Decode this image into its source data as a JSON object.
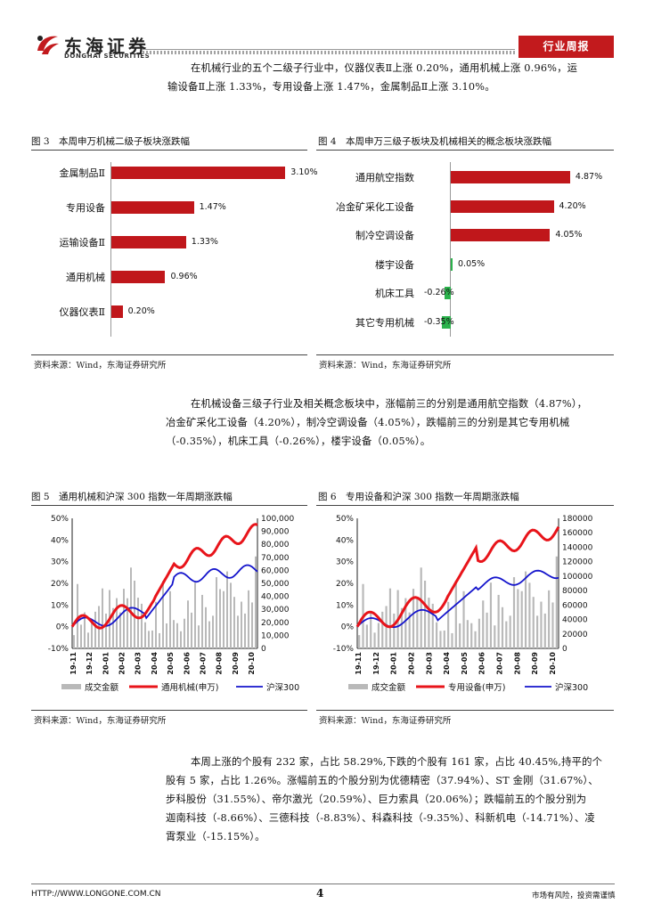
{
  "header": {
    "logo_cn": "东海证券",
    "logo_en": "DONGHAI SECURITIES",
    "badge": "行业周报"
  },
  "para1": {
    "line1": "在机械行业的五个二级子行业中，仪器仪表Ⅱ上涨 0.20%，通用机械上涨 0.96%，运",
    "line2": "输设备Ⅱ上涨 1.33%，专用设备上涨 1.47%，金属制品Ⅱ上涨 3.10%。"
  },
  "fig3": {
    "title": "图 3　本周申万机械二级子板块涨跌幅",
    "source": "资料来源：Wind，东海证券研究所"
  },
  "fig4": {
    "title": "图 4　本周申万三级子板块及机械相关的概念板块涨跌幅",
    "source": "资料来源：Wind，东海证券研究所"
  },
  "para2": {
    "line1": "在机械设备三级子行业及相关概念板块中，涨幅前三的分别是通用航空指数（4.87%），",
    "line2": "冶金矿采化工设备（4.20%），制冷空调设备（4.05%），跌幅前三的分别是其它专用机械",
    "line3": "（-0.35%），机床工具（-0.26%），楼宇设备（0.05%）。"
  },
  "fig5": {
    "title": "图 5　通用机械和沪深 300 指数一年周期涨跌幅",
    "source": "资料来源：Wind，东海证券研究所",
    "left_ticks": [
      "50%",
      "40%",
      "30%",
      "20%",
      "10%",
      "0%",
      "-10%"
    ],
    "right_ticks": [
      "100,000",
      "90,000",
      "80,000",
      "70,000",
      "60,000",
      "50,000",
      "40,000",
      "30,000",
      "20,000",
      "10,000",
      "0"
    ],
    "x_ticks": [
      "19-11",
      "19-12",
      "20-01",
      "20-02",
      "20-03",
      "20-04",
      "20-05",
      "20-06",
      "20-07",
      "20-08",
      "20-09",
      "20-10"
    ],
    "legend": {
      "bars": "成交金额",
      "line1": "通用机械(申万)",
      "line2": "沪深300"
    },
    "colors": {
      "bars": "#b9b9b9",
      "line1": "#e8141a",
      "line2": "#1414cc"
    }
  },
  "fig6": {
    "title": "图 6　专用设备和沪深 300 指数一年周期涨跌幅",
    "source": "资料来源：Wind，东海证券研究所",
    "left_ticks": [
      "50%",
      "40%",
      "30%",
      "20%",
      "10%",
      "0%",
      "-10%"
    ],
    "right_ticks": [
      "180000",
      "160000",
      "140000",
      "120000",
      "100000",
      "80000",
      "60000",
      "40000",
      "20000",
      "0"
    ],
    "x_ticks": [
      "19-11",
      "19-12",
      "20-01",
      "20-02",
      "20-03",
      "20-04",
      "20-05",
      "20-06",
      "20-07",
      "20-08",
      "20-09",
      "20-10"
    ],
    "legend": {
      "bars": "成交金额",
      "line1": "专用设备(申万)",
      "line2": "沪深300"
    },
    "colors": {
      "bars": "#b9b9b9",
      "line1": "#e8141a",
      "line2": "#1414cc"
    }
  },
  "para3": {
    "line1": "本周上涨的个股有 232 家，占比 58.29%,下跌的个股有 161 家，占比 40.45%,持平的个",
    "line2": "股有 5 家，占比 1.26%。涨幅前五的个股分别为优德精密（37.94%）、ST 金刚（31.67%）、",
    "line3": "步科股份（31.55%）、帝尔激光（20.59%）、巨力索具（20.06%）；跌幅前五的个股分别为",
    "line4": "迦南科技（-8.66%）、三德科技（-8.83%）、科森科技（-9.35%）、科新机电（-14.71%）、凌",
    "line5": "霄泵业（-15.15%）。"
  },
  "footer": {
    "url": "HTTP://WWW.LONGONE.COM.CN",
    "page": "4",
    "disclaimer": "市场有风险，投资需谨慎"
  },
  "chart_data": [
    {
      "type": "bar",
      "orientation": "horizontal",
      "title": "图 3　本周申万机械二级子板块涨跌幅",
      "categories": [
        "金属制品Ⅱ",
        "专用设备",
        "运输设备Ⅱ",
        "通用机械",
        "仪器仪表Ⅱ"
      ],
      "values": [
        3.1,
        1.47,
        1.33,
        0.96,
        0.2
      ],
      "labels": [
        "3.10%",
        "1.47%",
        "1.33%",
        "0.96%",
        "0.20%"
      ],
      "unit": "%",
      "color": "#c0171b"
    },
    {
      "type": "bar",
      "orientation": "horizontal",
      "title": "图 4　本周申万三级子板块及机械相关的概念板块涨跌幅",
      "categories": [
        "通用航空指数",
        "冶金矿采化工设备",
        "制冷空调设备",
        "楼宇设备",
        "机床工具",
        "其它专用机械"
      ],
      "values": [
        4.87,
        4.2,
        4.05,
        0.05,
        -0.26,
        -0.35
      ],
      "labels": [
        "4.87%",
        "4.20%",
        "4.05%",
        "0.05%",
        "-0.26%",
        "-0.35%"
      ],
      "unit": "%",
      "colors": {
        "positive": "#c0171b",
        "small": "#2bb24c"
      }
    }
  ]
}
